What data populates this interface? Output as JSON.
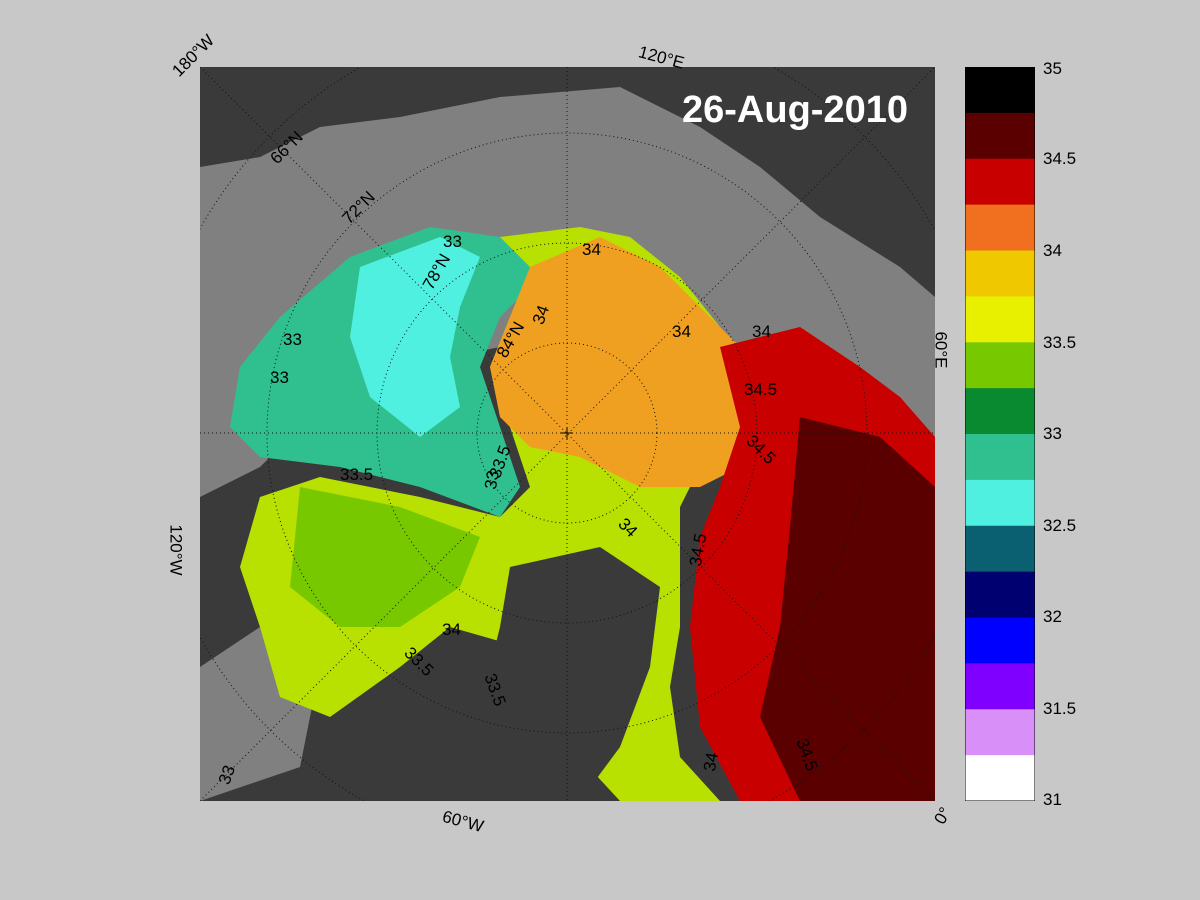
{
  "title": "26-Aug-2010",
  "longitude_labels": {
    "l180w": "180°W",
    "l120e": "120°E",
    "l120w": "120°W",
    "l60e": "60°E",
    "l60w": "60°W",
    "l0": "0°"
  },
  "latitude_labels": {
    "lat66": "66°N",
    "lat72": "72°N",
    "lat78": "78°N",
    "lat84": "84°N"
  },
  "contour_labels": [
    "33",
    "33",
    "33",
    "33",
    "33",
    "33.5",
    "33.5",
    "33.5",
    "33.5",
    "34",
    "34",
    "34",
    "34",
    "34",
    "34",
    "34",
    "34.5",
    "34.5",
    "34.5",
    "34.5"
  ],
  "colorbar": {
    "min": 31,
    "max": 35,
    "ticks": [
      "35",
      "34.5",
      "34",
      "33.5",
      "33",
      "32.5",
      "32",
      "31.5",
      "31"
    ],
    "colors": [
      "#000000",
      "#5a0000",
      "#c80000",
      "#f07020",
      "#f0c800",
      "#e8f000",
      "#78c800",
      "#0a8a30",
      "#30c090",
      "#50f0e0",
      "#0a6070",
      "#000070",
      "#0000ff",
      "#8000ff",
      "#d890f8",
      "#ffffff"
    ]
  },
  "colors": {
    "land": "#3a3a3a",
    "ice_shelf": "#808080",
    "ocean_background": "#c8c8c8"
  }
}
